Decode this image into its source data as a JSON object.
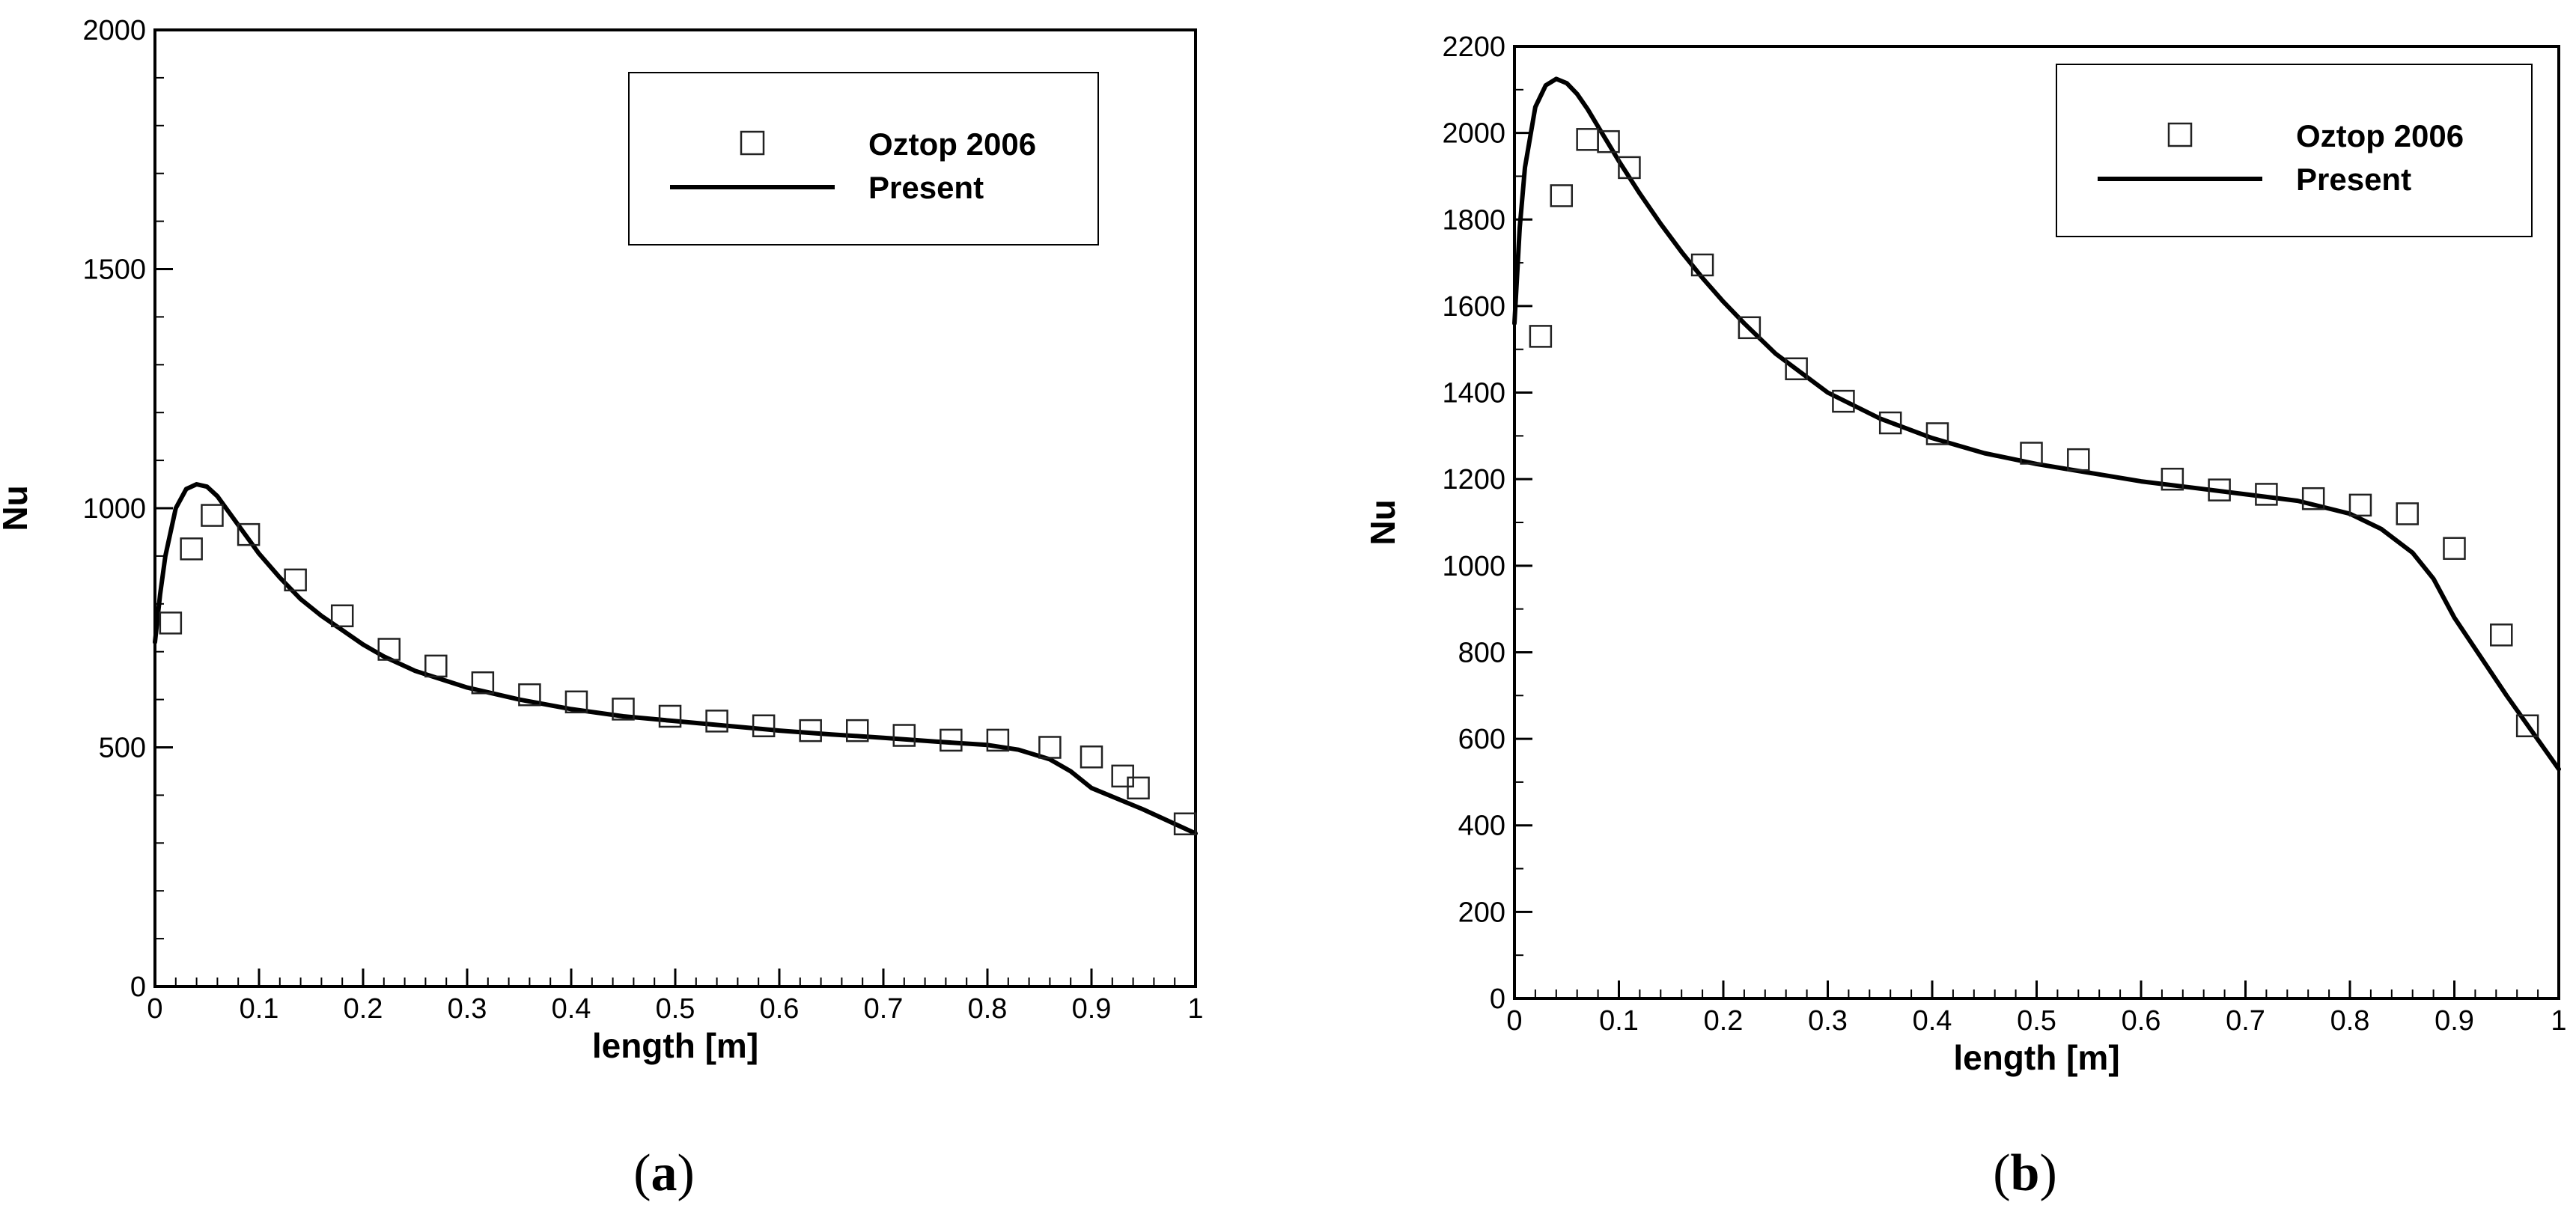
{
  "chart_data": [
    {
      "type": "line",
      "panel": "a",
      "panel_label": "a",
      "title": "",
      "xlabel": "length [m]",
      "ylabel": "Nu",
      "xlim": [
        0,
        1
      ],
      "ylim": [
        0,
        2000
      ],
      "x_major_ticks": [
        0,
        0.1,
        0.2,
        0.3,
        0.4,
        0.5,
        0.6,
        0.7,
        0.8,
        0.9,
        1
      ],
      "x_tick_labels": [
        "0",
        "0.1",
        "0.2",
        "0.3",
        "0.4",
        "0.5",
        "0.6",
        "0.7",
        "0.8",
        "0.9",
        "1"
      ],
      "y_major_ticks": [
        0,
        500,
        1000,
        1500,
        2000
      ],
      "y_tick_labels": [
        "0",
        "500",
        "1000",
        "1500",
        "2000"
      ],
      "x_minor_step": 0.02,
      "y_minor_step": 100,
      "grid": false,
      "legend_position": "top-right",
      "series": [
        {
          "name": "Oztop 2006",
          "kind": "marker",
          "marker": "open-square",
          "x": [
            0.015,
            0.035,
            0.055,
            0.09,
            0.135,
            0.18,
            0.225,
            0.27,
            0.315,
            0.36,
            0.405,
            0.45,
            0.495,
            0.54,
            0.585,
            0.63,
            0.675,
            0.72,
            0.765,
            0.81,
            0.86,
            0.9,
            0.93,
            0.945,
            0.99
          ],
          "y": [
            760,
            915,
            985,
            945,
            850,
            775,
            705,
            670,
            635,
            610,
            595,
            580,
            565,
            555,
            545,
            535,
            535,
            525,
            515,
            515,
            500,
            480,
            440,
            415,
            340
          ]
        },
        {
          "name": "Present",
          "kind": "line",
          "x": [
            0,
            0.005,
            0.01,
            0.02,
            0.03,
            0.04,
            0.05,
            0.06,
            0.07,
            0.08,
            0.09,
            0.1,
            0.12,
            0.14,
            0.16,
            0.18,
            0.2,
            0.22,
            0.25,
            0.3,
            0.35,
            0.4,
            0.45,
            0.5,
            0.55,
            0.6,
            0.65,
            0.7,
            0.75,
            0.8,
            0.83,
            0.86,
            0.88,
            0.9,
            0.95,
            1.0
          ],
          "y": [
            720,
            820,
            900,
            1000,
            1040,
            1050,
            1045,
            1025,
            995,
            965,
            935,
            905,
            855,
            810,
            775,
            745,
            715,
            690,
            660,
            625,
            600,
            580,
            565,
            555,
            545,
            535,
            527,
            520,
            512,
            505,
            495,
            475,
            450,
            415,
            370,
            320
          ]
        }
      ]
    },
    {
      "type": "line",
      "panel": "b",
      "panel_label": "b",
      "title": "",
      "xlabel": "length [m]",
      "ylabel": "Nu",
      "xlim": [
        0,
        1
      ],
      "ylim": [
        0,
        2200
      ],
      "x_major_ticks": [
        0,
        0.1,
        0.2,
        0.3,
        0.4,
        0.5,
        0.6,
        0.7,
        0.8,
        0.9,
        1
      ],
      "x_tick_labels": [
        "0",
        "0.1",
        "0.2",
        "0.3",
        "0.4",
        "0.5",
        "0.6",
        "0.7",
        "0.8",
        "0.9",
        "1"
      ],
      "y_major_ticks": [
        0,
        200,
        400,
        600,
        800,
        1000,
        1200,
        1400,
        1600,
        1800,
        2000,
        2200
      ],
      "y_tick_labels": [
        "0",
        "200",
        "400",
        "600",
        "800",
        "1000",
        "1200",
        "1400",
        "1600",
        "1800",
        "2000",
        "2200"
      ],
      "x_minor_step": 0.02,
      "y_minor_step": 100,
      "grid": false,
      "legend_position": "top-right",
      "series": [
        {
          "name": "Oztop 2006",
          "kind": "marker",
          "marker": "open-square",
          "x": [
            0.025,
            0.045,
            0.07,
            0.09,
            0.11,
            0.18,
            0.225,
            0.27,
            0.315,
            0.36,
            0.405,
            0.495,
            0.54,
            0.63,
            0.675,
            0.72,
            0.765,
            0.81,
            0.855,
            0.9,
            0.945,
            0.97
          ],
          "y": [
            1530,
            1855,
            1985,
            1980,
            1920,
            1695,
            1550,
            1455,
            1380,
            1330,
            1305,
            1260,
            1245,
            1200,
            1175,
            1165,
            1155,
            1140,
            1120,
            1040,
            840,
            630
          ]
        },
        {
          "name": "Present",
          "kind": "line",
          "x": [
            0,
            0.005,
            0.01,
            0.02,
            0.03,
            0.04,
            0.05,
            0.06,
            0.07,
            0.08,
            0.09,
            0.1,
            0.12,
            0.14,
            0.16,
            0.18,
            0.2,
            0.22,
            0.25,
            0.3,
            0.35,
            0.4,
            0.45,
            0.5,
            0.55,
            0.6,
            0.65,
            0.7,
            0.75,
            0.8,
            0.83,
            0.86,
            0.88,
            0.9,
            0.95,
            1.0
          ],
          "y": [
            1560,
            1780,
            1920,
            2060,
            2110,
            2125,
            2115,
            2090,
            2055,
            2015,
            1975,
            1935,
            1860,
            1790,
            1725,
            1665,
            1610,
            1560,
            1490,
            1400,
            1340,
            1295,
            1260,
            1235,
            1215,
            1195,
            1180,
            1165,
            1150,
            1120,
            1085,
            1030,
            970,
            880,
            700,
            530
          ]
        }
      ]
    }
  ]
}
